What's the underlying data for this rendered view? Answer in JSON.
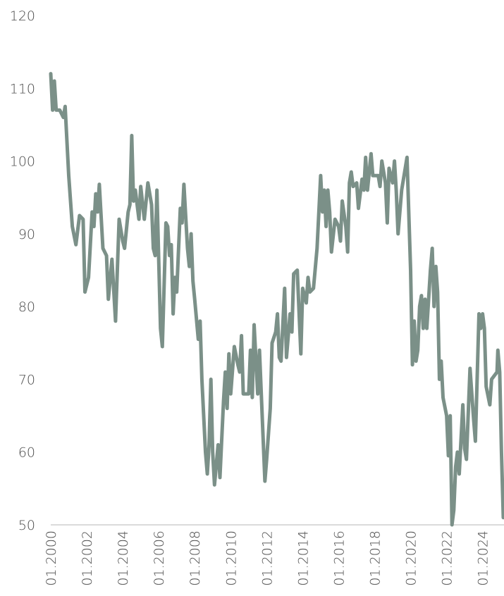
{
  "chart_data": {
    "type": "line",
    "x": [
      2000.0,
      2000.1,
      2000.2,
      2000.3,
      2000.5,
      2000.7,
      2000.8,
      2001.0,
      2001.2,
      2001.4,
      2001.6,
      2001.8,
      2001.9,
      2002.1,
      2002.3,
      2002.4,
      2002.5,
      2002.6,
      2002.7,
      2002.9,
      2003.1,
      2003.2,
      2003.4,
      2003.6,
      2003.8,
      2004.0,
      2004.1,
      2004.3,
      2004.4,
      2004.5,
      2004.6,
      2004.7,
      2004.9,
      2005.0,
      2005.2,
      2005.4,
      2005.6,
      2005.7,
      2005.8,
      2005.9,
      2006.1,
      2006.2,
      2006.4,
      2006.5,
      2006.6,
      2006.7,
      2006.8,
      2006.9,
      2007.0,
      2007.2,
      2007.3,
      2007.4,
      2007.6,
      2007.7,
      2007.8,
      2007.9,
      2008.0,
      2008.2,
      2008.3,
      2008.4,
      2008.6,
      2008.7,
      2008.8,
      2008.9,
      2009.0,
      2009.1,
      2009.3,
      2009.4,
      2009.6,
      2009.7,
      2009.8,
      2009.9,
      2010.0,
      2010.2,
      2010.4,
      2010.5,
      2010.6,
      2010.7,
      2011.0,
      2011.1,
      2011.2,
      2011.3,
      2011.5,
      2011.6,
      2011.9,
      2012.0,
      2012.2,
      2012.3,
      2012.5,
      2012.6,
      2012.7,
      2012.8,
      2013.0,
      2013.1,
      2013.3,
      2013.4,
      2013.5,
      2013.7,
      2013.9,
      2014.0,
      2014.2,
      2014.3,
      2014.4,
      2014.6,
      2014.8,
      2015.0,
      2015.1,
      2015.2,
      2015.3,
      2015.4,
      2015.5,
      2015.6,
      2015.8,
      2016.0,
      2016.1,
      2016.2,
      2016.4,
      2016.5,
      2016.6,
      2016.7,
      2016.8,
      2017.0,
      2017.1,
      2017.3,
      2017.4,
      2017.5,
      2017.6,
      2017.8,
      2017.9,
      2018.2,
      2018.3,
      2018.4,
      2018.6,
      2018.7,
      2018.8,
      2019.0,
      2019.1,
      2019.2,
      2019.3,
      2019.5,
      2019.7,
      2019.8,
      2020.0,
      2020.1,
      2020.2,
      2020.3,
      2020.4,
      2020.5,
      2020.6,
      2020.7,
      2020.8,
      2020.9,
      2021.1,
      2021.2,
      2021.3,
      2021.4,
      2021.5,
      2021.6,
      2021.7,
      2021.8,
      2022.0,
      2022.1,
      2022.2,
      2022.3,
      2022.4,
      2022.5,
      2022.6,
      2022.7,
      2022.9,
      2023.0,
      2023.1,
      2023.3,
      2023.4,
      2023.5,
      2023.6,
      2023.8,
      2023.9,
      2024.0,
      2024.1,
      2024.2,
      2024.4,
      2024.5,
      2024.8,
      2024.85,
      2024.95,
      2025.05,
      2025.15
    ],
    "values": [
      112,
      107,
      111,
      107,
      107,
      106,
      107.5,
      98,
      91,
      88.5,
      92.5,
      92,
      82,
      84,
      93,
      91,
      95.5,
      93,
      96.8,
      88,
      87,
      81,
      86.5,
      78,
      92,
      89,
      88,
      93,
      94,
      103.5,
      94.5,
      96,
      92,
      96.5,
      92,
      97,
      94,
      88,
      87,
      96,
      77,
      74.5,
      91.5,
      91,
      87,
      88.5,
      79,
      84,
      82,
      93.5,
      91.5,
      96.8,
      88,
      85.5,
      90,
      83.5,
      81,
      75.5,
      78,
      70,
      60,
      57,
      61,
      70,
      60,
      55.5,
      61,
      56.5,
      67,
      71,
      66,
      73.5,
      68,
      74.5,
      72,
      71,
      76,
      68,
      68,
      74,
      67.5,
      77.5,
      68,
      74,
      56,
      59,
      66,
      75,
      76.5,
      79,
      73,
      72.5,
      82.5,
      73,
      79,
      76.5,
      84.5,
      85,
      73.5,
      82.5,
      80.5,
      84,
      82,
      82.5,
      88,
      98,
      93,
      96,
      91,
      96,
      93,
      87.5,
      92,
      91,
      89,
      94.5,
      91,
      87.5,
      97,
      98.5,
      96.5,
      97,
      93.5,
      97.5,
      96,
      100.5,
      96,
      101,
      98,
      98,
      96.5,
      100,
      97,
      91.5,
      99,
      97,
      100,
      96,
      90,
      96,
      99,
      100.5,
      85,
      72,
      78,
      72.5,
      74,
      80,
      81.5,
      77,
      81,
      77,
      85,
      88,
      80,
      85.5,
      82,
      70,
      72.5,
      67.5,
      65,
      59.5,
      65,
      50,
      52,
      58,
      60,
      57,
      66.5,
      60.5,
      59,
      71.5,
      68,
      64.5,
      61.5,
      79,
      77,
      79,
      77,
      69,
      66.5,
      70,
      71,
      74,
      71,
      60,
      51
    ],
    "color": "#7b9088",
    "xlim": [
      2000,
      2025.15
    ],
    "xticks": [
      {
        "value": 2000,
        "label": "01.2000"
      },
      {
        "value": 2002,
        "label": "01.2002"
      },
      {
        "value": 2004,
        "label": "01.2004"
      },
      {
        "value": 2006,
        "label": "01.2006"
      },
      {
        "value": 2008,
        "label": "01.2008"
      },
      {
        "value": 2010,
        "label": "01.2010"
      },
      {
        "value": 2012,
        "label": "01.2012"
      },
      {
        "value": 2014,
        "label": "01.2014"
      },
      {
        "value": 2016,
        "label": "01.2016"
      },
      {
        "value": 2018,
        "label": "01.2018"
      },
      {
        "value": 2020,
        "label": "01.2020"
      },
      {
        "value": 2022,
        "label": "01.2022"
      },
      {
        "value": 2024,
        "label": "01.2024"
      }
    ],
    "ylim": [
      50,
      120
    ],
    "yticks": [
      50,
      60,
      70,
      80,
      90,
      100,
      110,
      120
    ],
    "grid": false
  }
}
